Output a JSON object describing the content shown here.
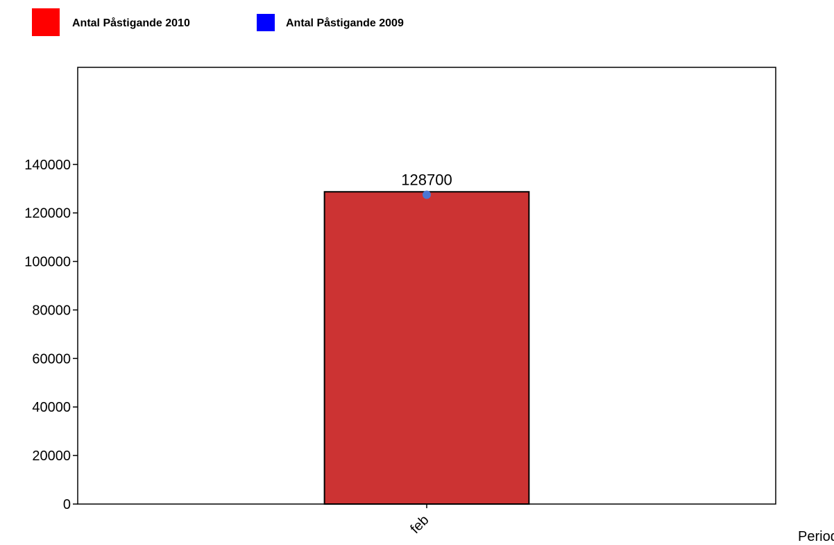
{
  "chart_data": {
    "type": "bar",
    "categories": [
      "feb"
    ],
    "series": [
      {
        "name": "Antal Påstigande 2010",
        "kind": "bar",
        "values": [
          128700
        ],
        "color": "#cc3333",
        "legend_color": "#ff0000"
      },
      {
        "name": "Antal Påstigande 2009",
        "kind": "point",
        "values": [
          127500
        ],
        "color": "#4a77d4",
        "legend_color": "#0000ff"
      }
    ],
    "data_labels": [
      "128700"
    ],
    "title": "",
    "xlabel": "Period",
    "ylabel": "",
    "ylim": [
      0,
      180000
    ],
    "yticks": [
      0,
      20000,
      40000,
      60000,
      80000,
      100000,
      120000,
      140000
    ],
    "grid": false,
    "legend_position": "top-left"
  }
}
